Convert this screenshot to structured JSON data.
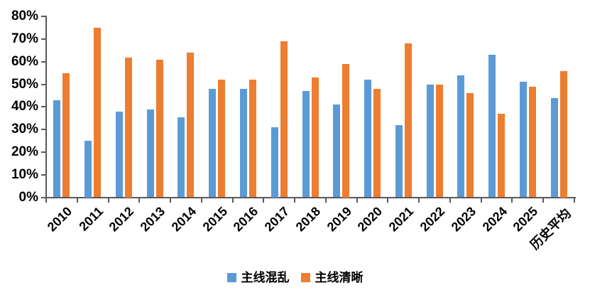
{
  "chart_data": {
    "type": "bar",
    "title": "",
    "categories": [
      "2010",
      "2011",
      "2012",
      "2013",
      "2014",
      "2015",
      "2016",
      "2017",
      "2018",
      "2019",
      "2020",
      "2021",
      "2022",
      "2023",
      "2024",
      "2025",
      "历史平均"
    ],
    "series": [
      {
        "name": "主线混乱",
        "color": "#5B9BD5",
        "values": [
          43,
          25,
          38,
          39,
          35.5,
          48,
          48,
          31,
          47,
          41,
          52,
          32,
          50,
          54,
          63,
          51,
          44
        ]
      },
      {
        "name": "主线清晰",
        "color": "#ED7D31",
        "values": [
          55,
          75,
          62,
          61,
          64,
          52,
          52,
          69,
          53,
          59,
          48,
          68,
          50,
          46,
          37,
          49,
          56
        ]
      }
    ],
    "xlabel": "",
    "ylabel": "",
    "ylim": [
      0,
      80
    ],
    "ytick_step": 10,
    "ytick_labels": [
      "0%",
      "10%",
      "20%",
      "30%",
      "40%",
      "50%",
      "60%",
      "70%",
      "80%"
    ],
    "grid": false,
    "legend_position": "bottom",
    "axis_color": "#595959",
    "text_color": "#000000",
    "background_color": "#FFFFFF"
  }
}
